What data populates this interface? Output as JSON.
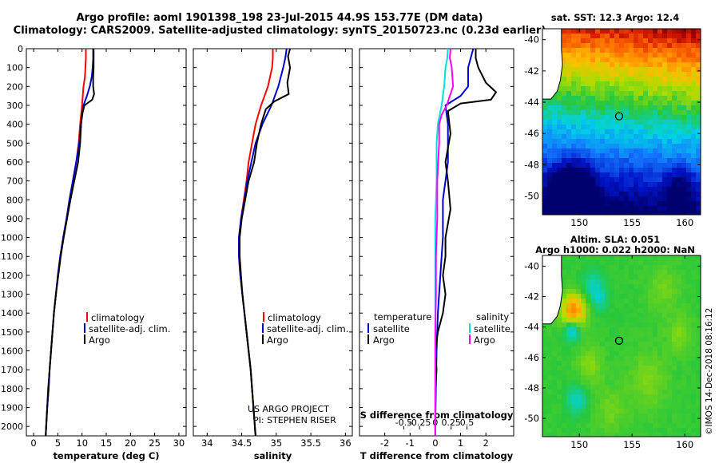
{
  "header": {
    "line1": "Argo profile: aoml 1901398_198 23-Jul-2015 44.9S 153.77E (DM data)",
    "line2": "Climatology: CARS2009. Satellite-adjusted climatology: synTS_20150723.nc (0.23d earlier)"
  },
  "credit": {
    "project": "US ARGO PROJECT",
    "pi": "PI: STEPHEN RISER"
  },
  "watermark": "©IMOS 14-Dec-2018 08:16:12",
  "colors": {
    "climatology": "#ff0000",
    "satellite": "#0000cc",
    "argo": "#000000",
    "sat_salinity": "#00e0e0",
    "argo_salinity": "#ff00ff"
  },
  "chart_data": [
    {
      "id": "temperature",
      "type": "line",
      "xlabel": "temperature (deg C)",
      "ylim": [
        0,
        2050
      ],
      "xlim": [
        -1.5,
        31.5
      ],
      "xticks": [
        0,
        5,
        10,
        15,
        20,
        25,
        30
      ],
      "yticks": [
        0,
        100,
        200,
        300,
        400,
        500,
        600,
        700,
        800,
        900,
        1000,
        1100,
        1200,
        1300,
        1400,
        1500,
        1600,
        1700,
        1800,
        1900,
        2000
      ],
      "legend": [
        "climatology",
        "satellite-adj. clim.",
        "Argo"
      ],
      "series": [
        {
          "key": "climatology",
          "color": "#ff0000",
          "points": [
            [
              10.8,
              0
            ],
            [
              10.8,
              50
            ],
            [
              10.7,
              100
            ],
            [
              10.6,
              150
            ],
            [
              10.3,
              200
            ],
            [
              10.0,
              300
            ],
            [
              9.6,
              400
            ],
            [
              9.3,
              500
            ],
            [
              8.8,
              600
            ],
            [
              8.1,
              700
            ],
            [
              7.4,
              800
            ],
            [
              6.8,
              900
            ],
            [
              6.1,
              1000
            ],
            [
              5.5,
              1100
            ],
            [
              5.0,
              1200
            ],
            [
              4.6,
              1300
            ],
            [
              4.2,
              1400
            ],
            [
              3.9,
              1500
            ],
            [
              3.6,
              1600
            ],
            [
              3.3,
              1700
            ],
            [
              3.1,
              1800
            ],
            [
              2.8,
              1900
            ],
            [
              2.6,
              2000
            ],
            [
              2.5,
              2050
            ]
          ]
        },
        {
          "key": "satellite",
          "color": "#0000cc",
          "points": [
            [
              12.3,
              0
            ],
            [
              12.3,
              50
            ],
            [
              12.2,
              100
            ],
            [
              12.0,
              150
            ],
            [
              11.6,
              200
            ],
            [
              11.0,
              250
            ],
            [
              10.3,
              300
            ],
            [
              9.8,
              400
            ],
            [
              9.4,
              500
            ],
            [
              8.8,
              600
            ],
            [
              8.1,
              700
            ],
            [
              7.4,
              800
            ],
            [
              6.8,
              900
            ],
            [
              6.1,
              1000
            ],
            [
              5.5,
              1100
            ],
            [
              5.0,
              1200
            ],
            [
              4.6,
              1300
            ],
            [
              4.2,
              1400
            ],
            [
              3.9,
              1500
            ],
            [
              3.6,
              1600
            ],
            [
              3.3,
              1700
            ],
            [
              3.1,
              1800
            ],
            [
              2.8,
              1900
            ],
            [
              2.6,
              2000
            ],
            [
              2.5,
              2050
            ]
          ]
        },
        {
          "key": "argo",
          "color": "#000000",
          "points": [
            [
              12.4,
              0
            ],
            [
              12.4,
              50
            ],
            [
              12.4,
              100
            ],
            [
              12.3,
              150
            ],
            [
              12.3,
              200
            ],
            [
              12.5,
              240
            ],
            [
              12.1,
              270
            ],
            [
              10.5,
              300
            ],
            [
              10.0,
              350
            ],
            [
              9.8,
              400
            ],
            [
              9.6,
              500
            ],
            [
              9.2,
              600
            ],
            [
              8.4,
              700
            ],
            [
              7.6,
              800
            ],
            [
              6.9,
              900
            ],
            [
              6.2,
              1000
            ],
            [
              5.6,
              1100
            ],
            [
              5.1,
              1200
            ],
            [
              4.6,
              1300
            ],
            [
              4.2,
              1400
            ],
            [
              3.9,
              1500
            ],
            [
              3.6,
              1600
            ],
            [
              3.3,
              1700
            ],
            [
              3.0,
              1800
            ],
            [
              2.8,
              1900
            ],
            [
              2.6,
              2000
            ],
            [
              2.5,
              2050
            ]
          ]
        }
      ]
    },
    {
      "id": "salinity",
      "type": "line",
      "xlabel": "salinity",
      "ylim": [
        0,
        2050
      ],
      "xlim": [
        33.8,
        36.1
      ],
      "xticks": [
        34,
        34.5,
        35,
        35.5,
        36
      ],
      "legend": [
        "climatology",
        "satellite-adj. clim.",
        "Argo"
      ],
      "series": [
        {
          "key": "climatology",
          "color": "#ff0000",
          "points": [
            [
              34.95,
              0
            ],
            [
              34.95,
              50
            ],
            [
              34.94,
              100
            ],
            [
              34.88,
              200
            ],
            [
              34.78,
              300
            ],
            [
              34.7,
              400
            ],
            [
              34.65,
              500
            ],
            [
              34.6,
              600
            ],
            [
              34.57,
              700
            ],
            [
              34.53,
              800
            ],
            [
              34.49,
              900
            ],
            [
              34.46,
              1000
            ],
            [
              34.46,
              1100
            ],
            [
              34.48,
              1200
            ],
            [
              34.51,
              1300
            ],
            [
              34.54,
              1400
            ],
            [
              34.57,
              1500
            ],
            [
              34.6,
              1600
            ],
            [
              34.63,
              1700
            ],
            [
              34.65,
              1800
            ],
            [
              34.67,
              1900
            ],
            [
              34.69,
              2000
            ],
            [
              34.7,
              2050
            ]
          ]
        },
        {
          "key": "satellite",
          "color": "#0000cc",
          "points": [
            [
              35.15,
              0
            ],
            [
              35.13,
              50
            ],
            [
              35.1,
              100
            ],
            [
              35.03,
              200
            ],
            [
              34.93,
              300
            ],
            [
              34.8,
              400
            ],
            [
              34.7,
              500
            ],
            [
              34.64,
              600
            ],
            [
              34.58,
              700
            ],
            [
              34.54,
              800
            ],
            [
              34.49,
              900
            ],
            [
              34.46,
              1000
            ],
            [
              34.46,
              1100
            ],
            [
              34.48,
              1200
            ],
            [
              34.51,
              1300
            ],
            [
              34.54,
              1400
            ],
            [
              34.57,
              1500
            ],
            [
              34.6,
              1600
            ],
            [
              34.63,
              1700
            ],
            [
              34.65,
              1800
            ],
            [
              34.67,
              1900
            ],
            [
              34.69,
              2000
            ],
            [
              34.7,
              2050
            ]
          ]
        },
        {
          "key": "argo",
          "color": "#000000",
          "points": [
            [
              35.2,
              0
            ],
            [
              35.17,
              40
            ],
            [
              35.2,
              100
            ],
            [
              35.16,
              180
            ],
            [
              35.18,
              240
            ],
            [
              34.97,
              280
            ],
            [
              34.85,
              320
            ],
            [
              34.78,
              400
            ],
            [
              34.72,
              500
            ],
            [
              34.68,
              600
            ],
            [
              34.6,
              700
            ],
            [
              34.55,
              800
            ],
            [
              34.5,
              900
            ],
            [
              34.47,
              1000
            ],
            [
              34.47,
              1100
            ],
            [
              34.49,
              1200
            ],
            [
              34.51,
              1300
            ],
            [
              34.54,
              1400
            ],
            [
              34.57,
              1500
            ],
            [
              34.6,
              1600
            ],
            [
              34.63,
              1700
            ],
            [
              34.65,
              1800
            ],
            [
              34.67,
              1900
            ],
            [
              34.69,
              2000
            ],
            [
              34.7,
              2050
            ]
          ]
        }
      ]
    },
    {
      "id": "difference",
      "type": "line",
      "xlabel": "T difference from climatology",
      "xlabel2": "S difference from climatology",
      "ylim": [
        0,
        2050
      ],
      "xlim": [
        -3,
        3.1
      ],
      "xticks": [
        -2,
        -1,
        0,
        1,
        2
      ],
      "sticks": [
        -0.5,
        -0.25,
        0,
        0.25,
        0.5
      ],
      "stick_labels": [
        "-0.5",
        "-0.25",
        "0",
        "0.25",
        "0.5"
      ],
      "legend_left_title": "temperature",
      "legend_left": [
        "satellite",
        "Argo"
      ],
      "legend_right_title": "salinity",
      "legend_right": [
        "satellite",
        "Argo"
      ],
      "series": [
        {
          "key": "t_sat",
          "color": "#0000cc",
          "units": "T",
          "points": [
            [
              1.5,
              0
            ],
            [
              1.4,
              50
            ],
            [
              1.3,
              100
            ],
            [
              1.3,
              150
            ],
            [
              1.3,
              200
            ],
            [
              1.0,
              250
            ],
            [
              0.4,
              300
            ],
            [
              0.5,
              400
            ],
            [
              0.5,
              600
            ],
            [
              0.4,
              700
            ],
            [
              0.3,
              800
            ],
            [
              0.3,
              1000
            ],
            [
              0.2,
              1200
            ],
            [
              0.1,
              1400
            ],
            [
              0.05,
              1600
            ],
            [
              0.02,
              1800
            ],
            [
              0.0,
              2000
            ],
            [
              0.0,
              2050
            ]
          ]
        },
        {
          "key": "t_argo",
          "color": "#000000",
          "units": "T",
          "points": [
            [
              1.6,
              0
            ],
            [
              1.6,
              50
            ],
            [
              1.7,
              100
            ],
            [
              2.0,
              180
            ],
            [
              2.4,
              230
            ],
            [
              2.2,
              270
            ],
            [
              1.0,
              290
            ],
            [
              0.5,
              330
            ],
            [
              0.6,
              450
            ],
            [
              0.4,
              600
            ],
            [
              0.5,
              700
            ],
            [
              0.6,
              850
            ],
            [
              0.4,
              1000
            ],
            [
              0.4,
              1100
            ],
            [
              0.3,
              1200
            ],
            [
              0.4,
              1300
            ],
            [
              0.3,
              1400
            ],
            [
              0.1,
              1500
            ],
            [
              0.0,
              1600
            ],
            [
              0.05,
              1700
            ],
            [
              0.0,
              1800
            ],
            [
              0.0,
              2000
            ],
            [
              0.0,
              2050
            ]
          ]
        },
        {
          "key": "s_sat",
          "color": "#00e0e0",
          "units": "S",
          "points": [
            [
              0.2,
              0
            ],
            [
              0.19,
              50
            ],
            [
              0.16,
              100
            ],
            [
              0.14,
              200
            ],
            [
              0.1,
              300
            ],
            [
              0.04,
              400
            ],
            [
              0.02,
              500
            ],
            [
              0.02,
              700
            ],
            [
              0.0,
              900
            ],
            [
              0.0,
              1100
            ],
            [
              0.0,
              1300
            ],
            [
              0.0,
              1500
            ],
            [
              0.0,
              1800
            ],
            [
              0.0,
              2000
            ],
            [
              0.0,
              2050
            ]
          ]
        },
        {
          "key": "s_argo",
          "color": "#ff00ff",
          "units": "S",
          "points": [
            [
              0.24,
              0
            ],
            [
              0.23,
              50
            ],
            [
              0.26,
              100
            ],
            [
              0.28,
              200
            ],
            [
              0.22,
              260
            ],
            [
              0.18,
              300
            ],
            [
              0.1,
              350
            ],
            [
              0.06,
              400
            ],
            [
              0.06,
              500
            ],
            [
              0.03,
              700
            ],
            [
              0.03,
              900
            ],
            [
              0.01,
              1100
            ],
            [
              0.01,
              1300
            ],
            [
              0.0,
              1500
            ],
            [
              0.0,
              1800
            ],
            [
              0.0,
              2050
            ]
          ]
        }
      ]
    }
  ],
  "maps": [
    {
      "id": "sst",
      "title1": "sat. SST: 12.3 Argo: 12.4",
      "xticks": [
        150,
        155,
        160
      ],
      "yticks": [
        -40,
        -42,
        -44,
        -46,
        -48,
        -50
      ],
      "lon": [
        146.5,
        161.5
      ],
      "lat": [
        -39.3,
        -51.2
      ],
      "argo_position": {
        "lon": 153.77,
        "lat": -44.9
      }
    },
    {
      "id": "sla",
      "title1": "Altim. SLA: 0.051",
      "title2": "Argo h1000: 0.022 h2000: NaN",
      "xticks": [
        150,
        155,
        160
      ],
      "yticks": [
        -40,
        -42,
        -44,
        -46,
        -48,
        -50
      ],
      "lon": [
        146.5,
        161.5
      ],
      "lat": [
        -39.3,
        -51.2
      ],
      "argo_position": {
        "lon": 153.77,
        "lat": -44.9
      }
    }
  ]
}
